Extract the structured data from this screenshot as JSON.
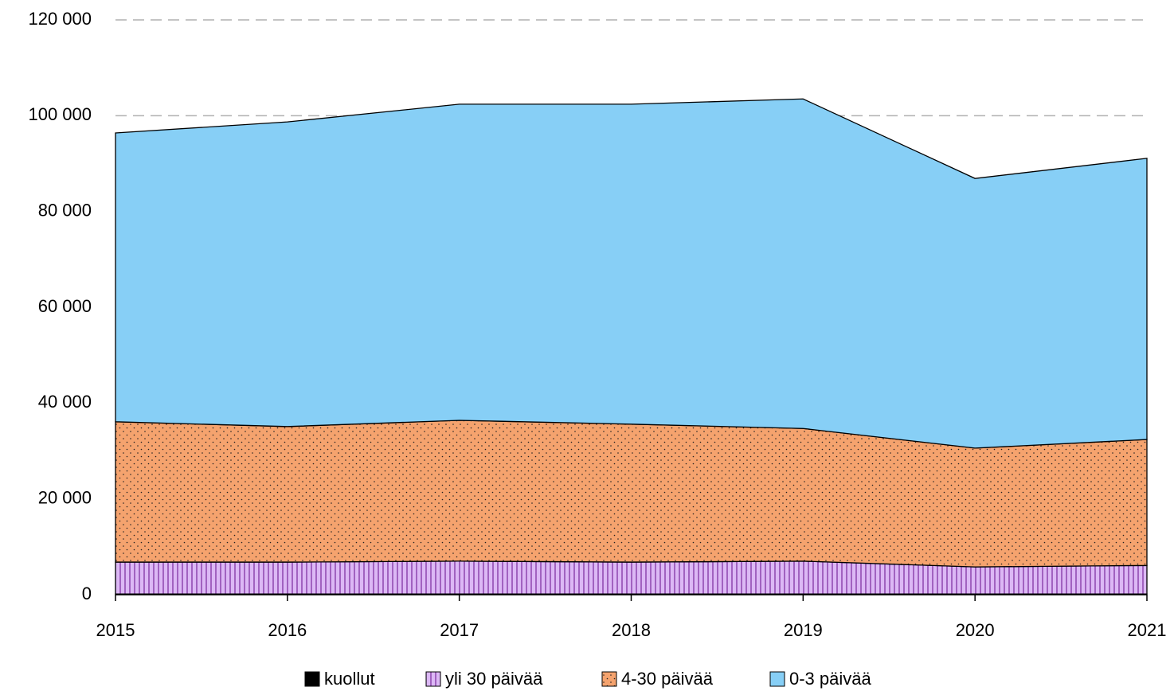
{
  "chart_data": {
    "type": "stacked_area",
    "categories": [
      "2015",
      "2016",
      "2017",
      "2018",
      "2019",
      "2020",
      "2021"
    ],
    "series": [
      {
        "name": "kuollut",
        "color": "#000000",
        "pattern": null,
        "values": [
          150,
          150,
          150,
          150,
          150,
          150,
          150
        ]
      },
      {
        "name": "yli 30 päivää",
        "color": "#dcb8f5",
        "pattern": "vertical",
        "values": [
          6650,
          6650,
          6850,
          6650,
          6850,
          5650,
          5950
        ]
      },
      {
        "name": "4-30 päivää",
        "color": "#f5a36e",
        "pattern": "dots",
        "values": [
          29300,
          28300,
          29400,
          28800,
          27700,
          24800,
          26300
        ]
      },
      {
        "name": "0-3 päivää",
        "color": "#87cff6",
        "pattern": null,
        "values": [
          60300,
          63600,
          66000,
          66800,
          68800,
          56300,
          58700
        ]
      }
    ],
    "ylim": [
      0,
      120000
    ],
    "yticks": [
      {
        "value": 0,
        "label": "0"
      },
      {
        "value": 20000,
        "label": "20 000"
      },
      {
        "value": 40000,
        "label": "40 000"
      },
      {
        "value": 60000,
        "label": "60 000"
      },
      {
        "value": 80000,
        "label": "80 000"
      },
      {
        "value": 100000,
        "label": "100 000"
      },
      {
        "value": 120000,
        "label": "120 000"
      }
    ],
    "grid": true,
    "legend": "bottom"
  }
}
